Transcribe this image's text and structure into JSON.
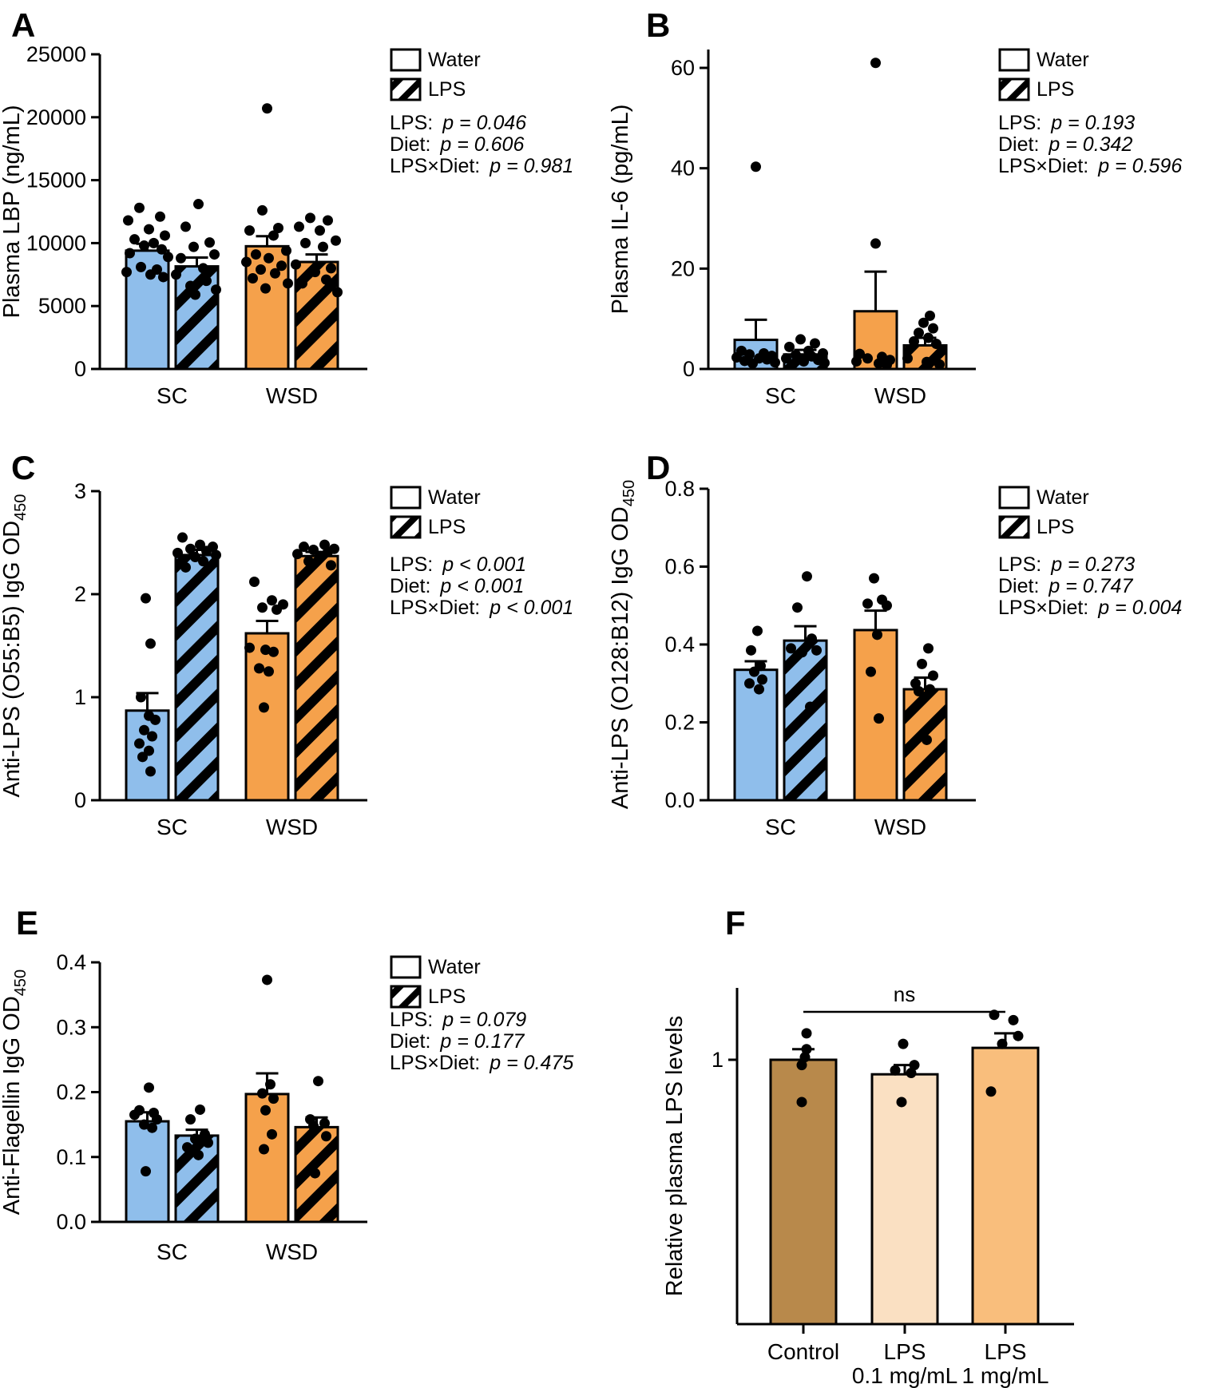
{
  "chart_data": [
    {
      "type": "bar",
      "label": "A",
      "ylabel": "Plasma LBP (ng/mL)",
      "ylabel_sub": "",
      "ylim": [
        0,
        25000
      ],
      "yticks": [
        0,
        5000,
        10000,
        15000,
        20000,
        25000
      ],
      "ytick_labels": [
        "0",
        "5000",
        "10000",
        "15000",
        "20000",
        "25000"
      ],
      "groups": [
        "SC",
        "WSD"
      ],
      "legend": [
        {
          "label": "Water",
          "hatch": false
        },
        {
          "label": "LPS",
          "hatch": true
        }
      ],
      "stats": [
        {
          "factor": "LPS:",
          "p": "p = 0.046"
        },
        {
          "factor": "Diet:",
          "p": "p = 0.606"
        },
        {
          "factor": "LPS×Diet:",
          "p": "p = 0.981"
        }
      ],
      "bars": [
        {
          "group": "SC",
          "series": "Water",
          "color": "#8FBEEB",
          "hatch": false,
          "mean": 9400,
          "err_top": 9950,
          "points": [
            12800,
            12100,
            11800,
            11100,
            10600,
            10300,
            10000,
            9800,
            9500,
            9200,
            8900,
            8100,
            7900,
            7700,
            7500,
            7300
          ],
          "jitter": [
            -10,
            16,
            -24,
            2,
            22,
            -16,
            8,
            -4,
            18,
            -22,
            26,
            -8,
            12,
            -26,
            4,
            20
          ]
        },
        {
          "group": "SC",
          "series": "LPS",
          "color": "#8FBEEB",
          "hatch": true,
          "mean": 8150,
          "err_top": 8850,
          "points": [
            13100,
            11300,
            10050,
            9700,
            9100,
            8800,
            8000,
            7500,
            7000,
            6600,
            6300,
            5900
          ],
          "jitter": [
            2,
            -14,
            16,
            -4,
            22,
            -20,
            8,
            -26,
            12,
            -8,
            24,
            -2
          ]
        },
        {
          "group": "WSD",
          "series": "Water",
          "color": "#F5A14B",
          "hatch": false,
          "mean": 9750,
          "err_top": 10550,
          "points": [
            20700,
            12600,
            11200,
            11000,
            10600,
            9400,
            9100,
            8800,
            8500,
            8200,
            7900,
            7600,
            7200,
            6800,
            6400
          ],
          "jitter": [
            0,
            -6,
            14,
            -22,
            8,
            24,
            -14,
            2,
            -26,
            18,
            -8,
            10,
            -18,
            26,
            -2
          ]
        },
        {
          "group": "WSD",
          "series": "LPS",
          "color": "#F5A14B",
          "hatch": true,
          "mean": 8500,
          "err_top": 9100,
          "points": [
            12000,
            11800,
            11300,
            11000,
            10200,
            10000,
            9700,
            8300,
            8000,
            7700,
            7100,
            6800,
            6100
          ],
          "jitter": [
            -8,
            14,
            -22,
            4,
            24,
            -14,
            8,
            -26,
            18,
            -2,
            12,
            -18,
            26
          ]
        }
      ]
    },
    {
      "type": "bar",
      "label": "B",
      "ylabel": "Plasma IL-6 (pg/mL)",
      "ylabel_sub": "",
      "ylim": [
        0,
        60
      ],
      "yticks": [
        0,
        20,
        40,
        60
      ],
      "ytick_labels": [
        "0",
        "20",
        "40",
        "60"
      ],
      "groups": [
        "SC",
        "WSD"
      ],
      "legend": [
        {
          "label": "Water",
          "hatch": false
        },
        {
          "label": "LPS",
          "hatch": true
        }
      ],
      "stats": [
        {
          "factor": "LPS:",
          "p": "p = 0.193"
        },
        {
          "factor": "Diet:",
          "p": "p = 0.342"
        },
        {
          "factor": "LPS×Diet:",
          "p": "p = 0.596"
        }
      ],
      "bars": [
        {
          "group": "SC",
          "series": "Water",
          "color": "#8FBEEB",
          "hatch": false,
          "mean": 5.8,
          "err_top": 9.8,
          "points": [
            40.3,
            3.6,
            3.1,
            2.9,
            2.6,
            2.3,
            2.1,
            1.9,
            1.6,
            1.3,
            1.1
          ],
          "jitter": [
            0,
            -18,
            10,
            -8,
            20,
            -24,
            4,
            14,
            -14,
            24,
            -4
          ]
        },
        {
          "group": "SC",
          "series": "LPS",
          "color": "#8FBEEB",
          "hatch": true,
          "mean": 2.9,
          "err_top": 3.8,
          "points": [
            5.9,
            5.1,
            4.4,
            3.6,
            3.1,
            2.8,
            2.5,
            2.1,
            1.8,
            1.5,
            1.2
          ],
          "jitter": [
            -6,
            12,
            -20,
            4,
            22,
            -12,
            8,
            -24,
            16,
            -2,
            24
          ]
        },
        {
          "group": "WSD",
          "series": "Water",
          "color": "#F5A14B",
          "hatch": false,
          "mean": 11.5,
          "err_top": 19.4,
          "points": [
            61,
            25,
            3.0,
            2.4,
            2.1,
            1.8,
            1.5,
            1.1,
            0.8
          ],
          "jitter": [
            0,
            0,
            -20,
            8,
            -10,
            18,
            -24,
            4,
            14
          ]
        },
        {
          "group": "WSD",
          "series": "LPS",
          "color": "#F5A14B",
          "hatch": true,
          "mean": 4.7,
          "err_top": 6.2,
          "points": [
            10.6,
            9.2,
            8.1,
            7.2,
            6.2,
            5.5,
            5.0,
            2.1,
            1.4,
            0.9
          ],
          "jitter": [
            6,
            -2,
            10,
            -8,
            4,
            -14,
            14,
            -22,
            2,
            18
          ]
        }
      ]
    },
    {
      "type": "bar",
      "label": "C",
      "ylabel": "Anti-LPS (O55:B5) IgG OD",
      "ylabel_sub": "450",
      "ylim": [
        0,
        3
      ],
      "yticks": [
        0,
        1,
        2,
        3
      ],
      "ytick_labels": [
        "0",
        "1",
        "2",
        "3"
      ],
      "groups": [
        "SC",
        "WSD"
      ],
      "legend": [
        {
          "label": "Water",
          "hatch": false
        },
        {
          "label": "LPS",
          "hatch": true
        }
      ],
      "stats": [
        {
          "factor": "LPS:",
          "p": "p < 0.001"
        },
        {
          "factor": "Diet:",
          "p": "p < 0.001"
        },
        {
          "factor": "LPS×Diet:",
          "p": "p < 0.001"
        }
      ],
      "bars": [
        {
          "group": "SC",
          "series": "Water",
          "color": "#8FBEEB",
          "hatch": false,
          "mean": 0.87,
          "err_top": 1.04,
          "points": [
            1.96,
            1.52,
            1.0,
            0.82,
            0.78,
            0.68,
            0.62,
            0.55,
            0.48,
            0.42,
            0.28
          ],
          "jitter": [
            -2,
            4,
            -8,
            2,
            10,
            -4,
            6,
            -10,
            2,
            -6,
            4
          ]
        },
        {
          "group": "SC",
          "series": "LPS",
          "color": "#8FBEEB",
          "hatch": true,
          "mean": 2.38,
          "err_top": 2.43,
          "points": [
            2.55,
            2.48,
            2.46,
            2.44,
            2.42,
            2.4,
            2.38,
            2.36,
            2.32,
            2.26
          ],
          "jitter": [
            -18,
            4,
            20,
            -8,
            12,
            -24,
            24,
            -2,
            8,
            -14
          ]
        },
        {
          "group": "WSD",
          "series": "Water",
          "color": "#F5A14B",
          "hatch": false,
          "mean": 1.62,
          "err_top": 1.74,
          "points": [
            2.12,
            1.94,
            1.9,
            1.87,
            1.85,
            1.48,
            1.46,
            1.44,
            1.28,
            1.25,
            0.9
          ],
          "jitter": [
            -16,
            6,
            20,
            -6,
            12,
            -22,
            -2,
            8,
            -10,
            2,
            -4
          ]
        },
        {
          "group": "WSD",
          "series": "LPS",
          "color": "#F5A14B",
          "hatch": true,
          "mean": 2.37,
          "err_top": 2.41,
          "points": [
            2.48,
            2.46,
            2.44,
            2.43,
            2.41,
            2.39,
            2.37,
            2.32,
            2.28
          ],
          "jitter": [
            10,
            -16,
            22,
            -4,
            14,
            -24,
            4,
            -10,
            18
          ]
        }
      ]
    },
    {
      "type": "bar",
      "label": "D",
      "ylabel": "Anti-LPS (O128:B12) IgG OD",
      "ylabel_sub": "450",
      "ylim": [
        0,
        0.8
      ],
      "yticks": [
        0,
        0.2,
        0.4,
        0.6,
        0.8
      ],
      "ytick_labels": [
        "0.0",
        "0.2",
        "0.4",
        "0.6",
        "0.8"
      ],
      "groups": [
        "SC",
        "WSD"
      ],
      "legend": [
        {
          "label": "Water",
          "hatch": false
        },
        {
          "label": "LPS",
          "hatch": true
        }
      ],
      "stats": [
        {
          "factor": "LPS:",
          "p": "p = 0.273"
        },
        {
          "factor": "Diet:",
          "p": "p = 0.747"
        },
        {
          "factor": "LPS×Diet:",
          "p": "p = 0.004"
        }
      ],
      "bars": [
        {
          "group": "SC",
          "series": "Water",
          "color": "#8FBEEB",
          "hatch": false,
          "mean": 0.335,
          "err_top": 0.357,
          "points": [
            0.435,
            0.385,
            0.345,
            0.33,
            0.31,
            0.3,
            0.285
          ],
          "jitter": [
            2,
            -6,
            6,
            -2,
            8,
            -8,
            4
          ]
        },
        {
          "group": "SC",
          "series": "LPS",
          "color": "#8FBEEB",
          "hatch": true,
          "mean": 0.41,
          "err_top": 0.447,
          "points": [
            0.575,
            0.495,
            0.415,
            0.39,
            0.385,
            0.38,
            0.24
          ],
          "jitter": [
            2,
            -10,
            8,
            -18,
            14,
            -4,
            6
          ]
        },
        {
          "group": "WSD",
          "series": "Water",
          "color": "#F5A14B",
          "hatch": false,
          "mean": 0.437,
          "err_top": 0.487,
          "points": [
            0.57,
            0.515,
            0.505,
            0.5,
            0.425,
            0.33,
            0.21
          ],
          "jitter": [
            -2,
            8,
            -10,
            14,
            2,
            -6,
            4
          ]
        },
        {
          "group": "WSD",
          "series": "LPS",
          "color": "#F5A14B",
          "hatch": true,
          "mean": 0.285,
          "err_top": 0.315,
          "points": [
            0.39,
            0.35,
            0.32,
            0.3,
            0.285,
            0.28,
            0.155
          ],
          "jitter": [
            4,
            -4,
            10,
            -12,
            6,
            -8,
            2
          ]
        }
      ]
    },
    {
      "type": "bar",
      "label": "E",
      "ylabel": "Anti-Flagellin IgG OD",
      "ylabel_sub": "450",
      "ylim": [
        0,
        0.4
      ],
      "yticks": [
        0,
        0.1,
        0.2,
        0.3,
        0.4
      ],
      "ytick_labels": [
        "0.0",
        "0.1",
        "0.2",
        "0.3",
        "0.4"
      ],
      "groups": [
        "SC",
        "WSD"
      ],
      "legend": [
        {
          "label": "Water",
          "hatch": false
        },
        {
          "label": "LPS",
          "hatch": true
        }
      ],
      "stats": [
        {
          "factor": "LPS:",
          "p": "p = 0.079"
        },
        {
          "factor": "Diet:",
          "p": "p = 0.177"
        },
        {
          "factor": "LPS×Diet:",
          "p": "p = 0.475"
        }
      ],
      "bars": [
        {
          "group": "SC",
          "series": "Water",
          "color": "#8FBEEB",
          "hatch": false,
          "mean": 0.155,
          "err_top": 0.169,
          "points": [
            0.207,
            0.172,
            0.168,
            0.165,
            0.158,
            0.15,
            0.145,
            0.078
          ],
          "jitter": [
            2,
            -10,
            8,
            -16,
            12,
            -4,
            6,
            -2
          ]
        },
        {
          "group": "SC",
          "series": "LPS",
          "color": "#8FBEEB",
          "hatch": true,
          "mean": 0.133,
          "err_top": 0.142,
          "points": [
            0.173,
            0.158,
            0.135,
            0.128,
            0.122,
            0.115,
            0.103
          ],
          "jitter": [
            4,
            -8,
            10,
            -2,
            14,
            -12,
            2
          ]
        },
        {
          "group": "WSD",
          "series": "Water",
          "color": "#F5A14B",
          "hatch": false,
          "mean": 0.197,
          "err_top": 0.229,
          "points": [
            0.373,
            0.212,
            0.198,
            0.19,
            0.172,
            0.135,
            0.112
          ],
          "jitter": [
            0,
            4,
            -6,
            8,
            -2,
            6,
            -4
          ]
        },
        {
          "group": "WSD",
          "series": "LPS",
          "color": "#F5A14B",
          "hatch": true,
          "mean": 0.146,
          "err_top": 0.161,
          "points": [
            0.217,
            0.158,
            0.152,
            0.148,
            0.132,
            0.075
          ],
          "jitter": [
            2,
            -8,
            10,
            -4,
            12,
            -2
          ]
        }
      ]
    },
    {
      "type": "bar",
      "label": "F",
      "ylabel": "Relative plasma LPS levels",
      "ylabel_sub": "",
      "yticks": [
        1
      ],
      "ytick_labels": [
        "1"
      ],
      "categories": [
        [
          "Control"
        ],
        [
          "LPS",
          "0.1 mg/mL"
        ],
        [
          "LPS",
          "1 mg/mL"
        ]
      ],
      "annotation": {
        "text": "ns",
        "from_bar": 0,
        "to_bar": 2
      },
      "bars": [
        {
          "category": "Control",
          "color": "#B8894B",
          "hatch": false,
          "mean": 1.0,
          "err_top": 1.04,
          "points": [
            1.1,
            1.04,
            1.01,
            0.98,
            0.84
          ],
          "jitter": [
            4,
            4,
            2,
            -2,
            -2
          ]
        },
        {
          "category": "LPS 0.1 mg/mL",
          "color": "#FAE0C2",
          "hatch": false,
          "mean": 0.945,
          "err_top": 0.98,
          "points": [
            1.06,
            0.98,
            0.96,
            0.95,
            0.84
          ],
          "jitter": [
            -2,
            12,
            -12,
            8,
            -4
          ]
        },
        {
          "category": "LPS 1 mg/mL",
          "color": "#F9BE7C",
          "hatch": false,
          "mean": 1.045,
          "err_top": 1.1,
          "points": [
            1.17,
            1.15,
            1.09,
            1.06,
            0.88
          ],
          "jitter": [
            -14,
            10,
            16,
            -4,
            -18
          ]
        }
      ]
    }
  ]
}
